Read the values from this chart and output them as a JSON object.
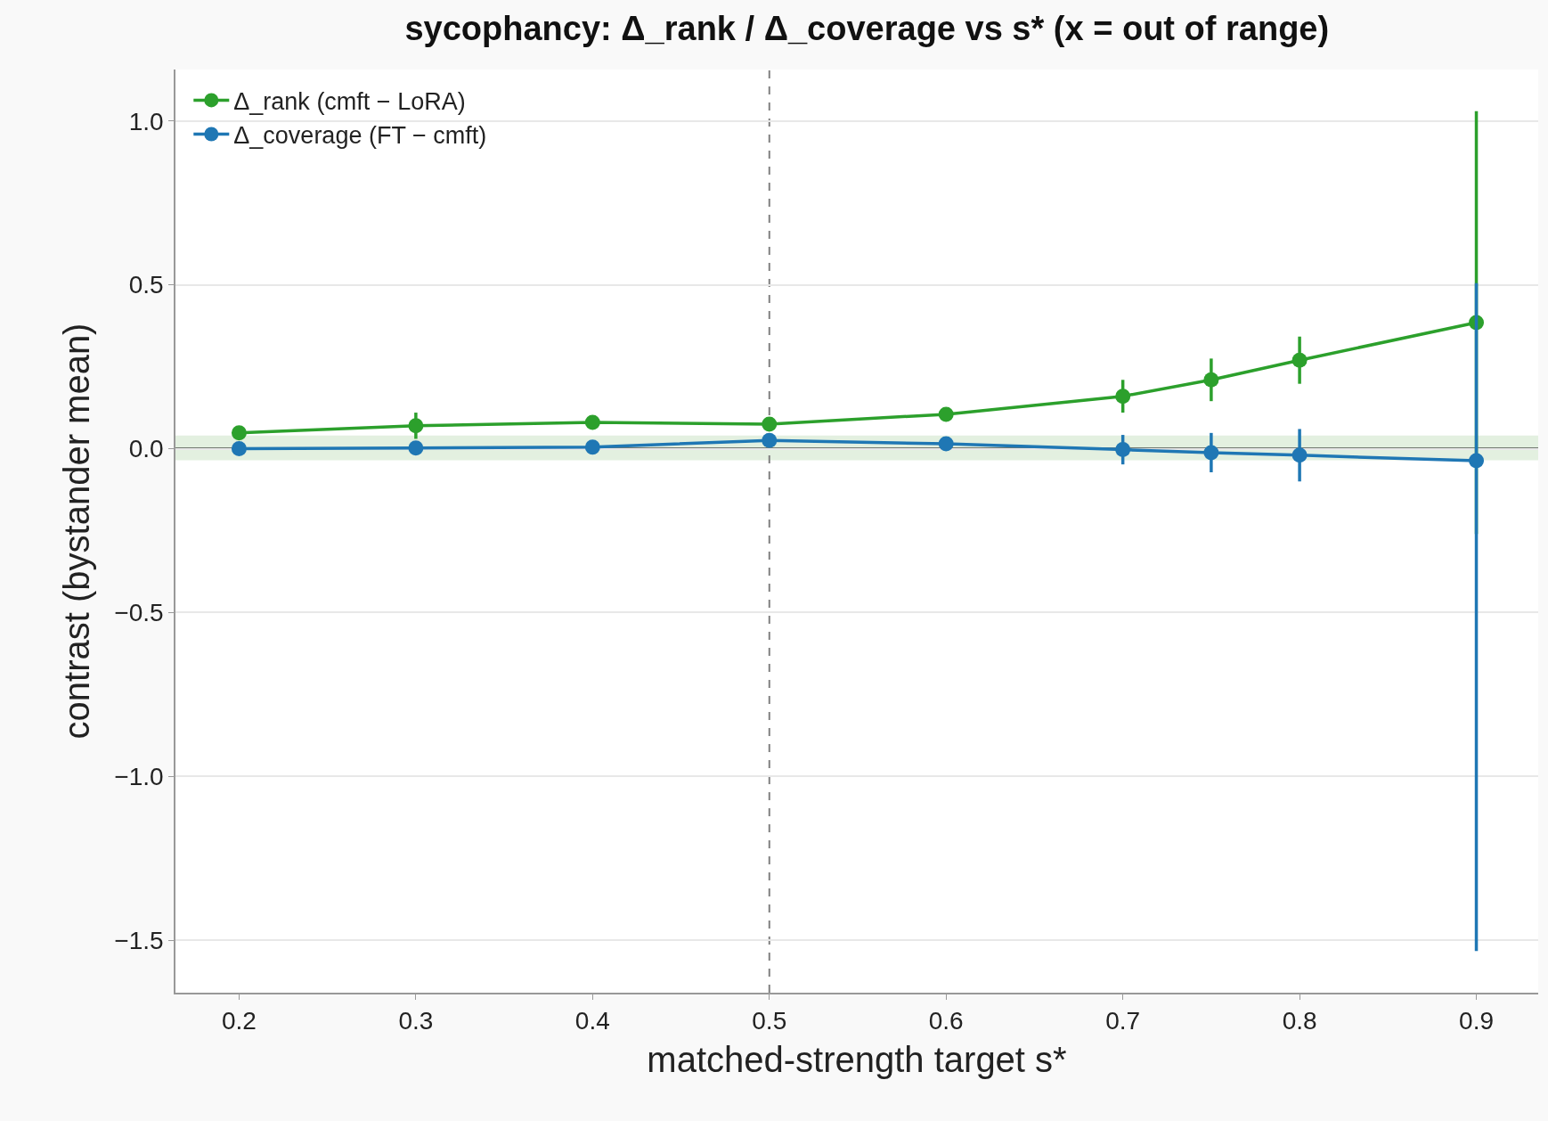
{
  "chart_data": {
    "type": "line",
    "title": "sycophancy: Δ_rank / Δ_coverage vs s* (x = out of range)",
    "xlabel": "matched-strength target s*",
    "ylabel": "contrast (bystander mean)",
    "x": [
      0.2,
      0.3,
      0.4,
      0.5,
      0.6,
      0.7,
      0.75,
      0.8,
      0.9
    ],
    "series": [
      {
        "name": "Δ_rank (cmft − LoRA)",
        "color": "#2ca02c",
        "values": [
          0.048,
          0.07,
          0.08,
          0.075,
          0.105,
          0.16,
          0.21,
          0.27,
          0.385
        ],
        "errors": [
          null,
          0.04,
          null,
          null,
          null,
          0.05,
          0.065,
          0.072,
          0.645
        ]
      },
      {
        "name": "Δ_coverage (FT − cmft)",
        "color": "#1f77b4",
        "values": [
          0.0,
          0.002,
          0.005,
          0.025,
          0.015,
          -0.003,
          -0.012,
          -0.02,
          -0.037
        ],
        "errors": [
          null,
          null,
          null,
          null,
          null,
          0.045,
          0.06,
          0.08,
          [
            -1.533,
            0.505
          ]
        ]
      }
    ],
    "xlim": [
      0.164,
      0.935
    ],
    "xticks": [
      0.2,
      0.3,
      0.4,
      0.5,
      0.6,
      0.7,
      0.8,
      0.9
    ],
    "ylim": [
      -1.66,
      1.157
    ],
    "yticks": [
      {
        "value": -1.5,
        "label": "−1.5"
      },
      {
        "value": -1.0,
        "label": "−1.0"
      },
      {
        "value": -0.5,
        "label": "−0.5"
      },
      {
        "value": 0.0,
        "label": "0.0"
      },
      {
        "value": 0.5,
        "label": "0.5"
      },
      {
        "value": 1.0,
        "label": "1.0"
      }
    ],
    "ref_lines": [
      {
        "axis": "y",
        "value": 0,
        "color": "#000000",
        "line_style": "solid"
      },
      {
        "axis": "x",
        "value": 0.5,
        "color": "#808080",
        "line_style": "dashed"
      }
    ],
    "bands": [
      {
        "axis": "y",
        "from": -0.035,
        "to": 0.04,
        "color": "#e3f0e0"
      }
    ],
    "grid": "y",
    "legend": "top left",
    "marker": "circle",
    "line_style": "solid"
  }
}
